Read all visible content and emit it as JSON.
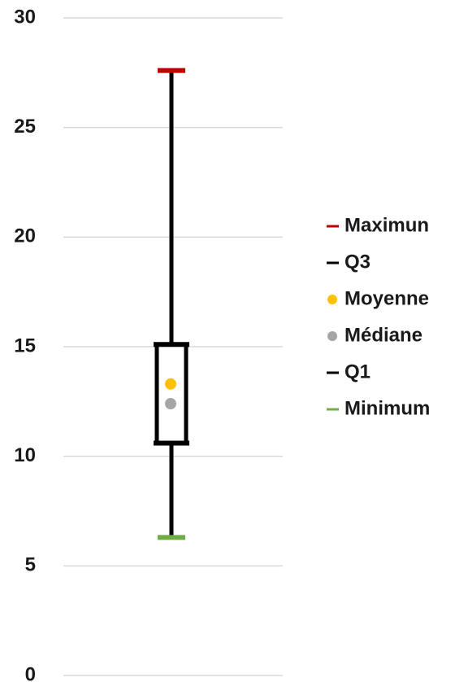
{
  "chart_data": {
    "type": "box",
    "ylim": [
      0,
      30
    ],
    "yticks": [
      0,
      5,
      10,
      15,
      20,
      25,
      30
    ],
    "grid": true,
    "legend_position": "right",
    "stats": {
      "maximum": 27.6,
      "q3": 15.1,
      "mean": 13.3,
      "median": 12.4,
      "q1": 10.6,
      "minimum": 6.3
    },
    "legend": [
      {
        "key": "maximum",
        "label": "Maximun",
        "color": "#c00000",
        "marker": "dash"
      },
      {
        "key": "q3",
        "label": "Q3",
        "color": "#000000",
        "marker": "dash"
      },
      {
        "key": "mean",
        "label": "Moyenne",
        "color": "#ffc000",
        "marker": "dot"
      },
      {
        "key": "median",
        "label": "Médiane",
        "color": "#a5a5a5",
        "marker": "dot"
      },
      {
        "key": "q1",
        "label": "Q1",
        "color": "#000000",
        "marker": "dash"
      },
      {
        "key": "minimum",
        "label": "Minimum",
        "color": "#70ad47",
        "marker": "dash"
      }
    ],
    "colors": {
      "whisker": "#000000",
      "box": "#000000",
      "grid": "#d9d9d9"
    }
  }
}
